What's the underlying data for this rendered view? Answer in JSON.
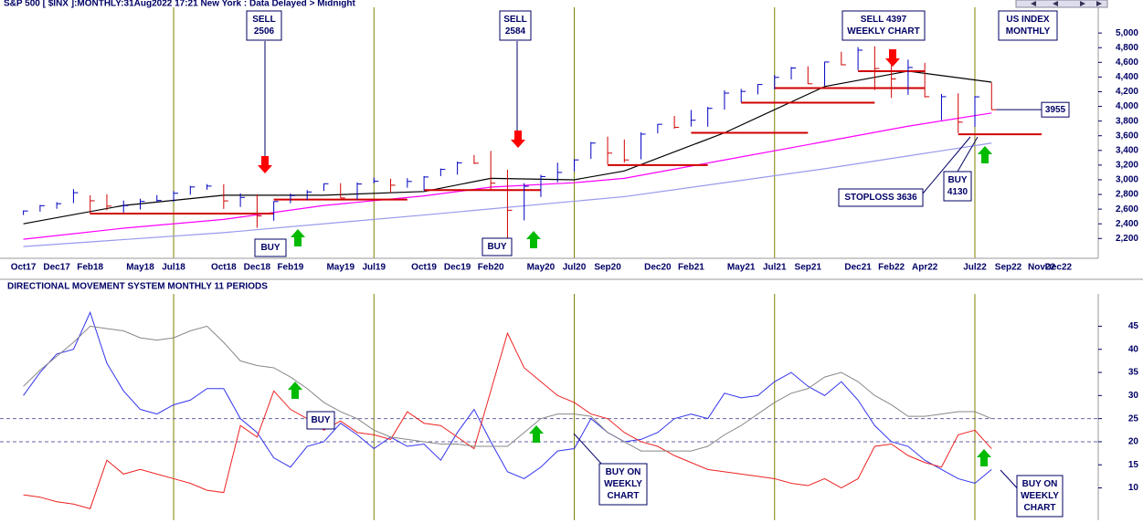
{
  "chart_data": [
    {
      "type": "ohlc",
      "title": "S&P 500 [ $INX ]:MONTHLY:31Aug2022 17:21 New York : Data Delayed > Midnight",
      "categories": [
        "Oct17",
        null,
        "Dec17",
        null,
        "Feb18",
        null,
        null,
        "May18",
        null,
        "Jul18",
        null,
        null,
        "Oct18",
        null,
        "Dec18",
        null,
        "Feb19",
        null,
        null,
        "May19",
        null,
        "Jul19",
        null,
        null,
        "Oct19",
        null,
        "Dec19",
        null,
        "Feb20",
        null,
        null,
        "May20",
        null,
        "Jul20",
        null,
        "Sep20",
        null,
        null,
        "Dec20",
        null,
        "Feb21",
        null,
        null,
        "May21",
        null,
        "Jul21",
        null,
        "Sep21",
        null,
        null,
        "Dec21",
        null,
        "Feb22",
        null,
        "Apr22",
        null,
        null,
        "Jul22",
        null,
        "Sep22",
        null,
        "Nov22",
        "Dec22"
      ],
      "high": [
        2582,
        2657,
        2695,
        2873,
        2789,
        2801,
        2718,
        2742,
        2791,
        2848,
        2917,
        2941,
        2940,
        2815,
        2800,
        2708,
        2813,
        2860,
        2949,
        2954,
        2964,
        3028,
        3014,
        3022,
        3050,
        3154,
        3248,
        3338,
        3393,
        3137,
        2954,
        3068,
        3233,
        3280,
        3515,
        3588,
        3549,
        3646,
        3760,
        3870,
        3950,
        3994,
        4218,
        4238,
        4302,
        4429,
        4537,
        4546,
        4608,
        4744,
        4808,
        4818,
        4595,
        4637,
        4593,
        4170,
        4178,
        4140,
        4325,
        null,
        null,
        null,
        null
      ],
      "low": [
        2520,
        2566,
        2605,
        2683,
        2533,
        2585,
        2553,
        2595,
        2698,
        2699,
        2796,
        2864,
        2603,
        2631,
        2346,
        2443,
        2681,
        2722,
        2848,
        2750,
        2729,
        2952,
        2822,
        2892,
        2855,
        3050,
        3070,
        3214,
        2855,
        2192,
        2447,
        2766,
        2966,
        3115,
        3284,
        3209,
        3233,
        3279,
        3633,
        3695,
        3725,
        3723,
        3955,
        4056,
        4164,
        4233,
        4367,
        4305,
        4279,
        4560,
        4495,
        4223,
        4115,
        4157,
        4124,
        3811,
        3637,
        3721,
        3955,
        null,
        null,
        null,
        null
      ],
      "close": [
        2575,
        2647,
        2674,
        2824,
        2714,
        2641,
        2648,
        2705,
        2718,
        2816,
        2902,
        2914,
        2712,
        2760,
        2507,
        2704,
        2784,
        2834,
        2946,
        2752,
        2942,
        2980,
        2926,
        2977,
        3038,
        3141,
        3231,
        3226,
        2954,
        2585,
        2912,
        3044,
        3100,
        3271,
        3500,
        3363,
        3270,
        3622,
        3756,
        3714,
        3811,
        3973,
        4181,
        4204,
        4298,
        4395,
        4523,
        4308,
        4605,
        4567,
        4766,
        4516,
        4374,
        4530,
        4132,
        4132,
        3785,
        4130,
        3955,
        null,
        null,
        null,
        null
      ],
      "up_color": "#0000c0",
      "down_color": "#d00000",
      "overlays": [
        {
          "color": "#000000",
          "x": [
            0,
            6,
            12,
            18,
            24,
            28,
            33,
            36,
            42,
            48,
            53,
            58
          ],
          "values": [
            2400,
            2650,
            2790,
            2790,
            2840,
            3020,
            3000,
            3120,
            3640,
            4270,
            4480,
            4330
          ]
        },
        {
          "color": "#ff00ff",
          "x": [
            0,
            6,
            12,
            18,
            24,
            28,
            33,
            36,
            42,
            48,
            53,
            58
          ],
          "values": [
            2190,
            2340,
            2460,
            2650,
            2780,
            2900,
            2960,
            3020,
            3270,
            3520,
            3730,
            3910
          ]
        },
        {
          "color": "#9999ee",
          "x": [
            0,
            12,
            24,
            36,
            48,
            58
          ],
          "values": [
            2090,
            2280,
            2520,
            2770,
            3150,
            3500
          ]
        }
      ],
      "levels": [
        {
          "x": [
            4,
            15
          ],
          "value": 2540
        },
        {
          "x": [
            15,
            23
          ],
          "value": 2730
        },
        {
          "x": [
            24,
            31
          ],
          "value": 2860
        },
        {
          "x": [
            35,
            41
          ],
          "value": 3200
        },
        {
          "x": [
            40,
            47
          ],
          "value": 3640
        },
        {
          "x": [
            43,
            51
          ],
          "value": 4050
        },
        {
          "x": [
            45,
            54
          ],
          "value": 4250
        },
        {
          "x": [
            50,
            54
          ],
          "value": 4480
        },
        {
          "x": [
            56,
            61
          ],
          "value": 3620
        }
      ],
      "level_color": "#d00000",
      "ylim": [
        1930,
        5350
      ],
      "yticks": [
        {
          "value": 2200,
          "label": "2,200"
        },
        {
          "value": 2400,
          "label": "2,400"
        },
        {
          "value": 2600,
          "label": "2,600"
        },
        {
          "value": 2800,
          "label": "2,800"
        },
        {
          "value": 3000,
          "label": "3,000"
        },
        {
          "value": 3200,
          "label": "3,200"
        },
        {
          "value": 3400,
          "label": "3,400"
        },
        {
          "value": 3600,
          "label": "3,600"
        },
        {
          "value": 3800,
          "label": "3,800"
        },
        {
          "value": 4000,
          "label": "4,000"
        },
        {
          "value": 4200,
          "label": "4,200"
        },
        {
          "value": 4400,
          "label": "4,400"
        },
        {
          "value": 4600,
          "label": "4,600"
        },
        {
          "value": 4800,
          "label": "4,800"
        },
        {
          "value": 5000,
          "label": "5,000"
        }
      ],
      "annotations": [
        {
          "lines": [
            "SELL",
            "2506"
          ]
        },
        {
          "lines": [
            "SELL",
            "2584"
          ]
        },
        {
          "lines": [
            "SELL 4397",
            "WEEKLY CHART"
          ]
        },
        {
          "lines": [
            "US INDEX",
            "MONTHLY"
          ]
        },
        {
          "lines": [
            "BUY"
          ]
        },
        {
          "lines": [
            "BUY"
          ]
        },
        {
          "lines": [
            "BUY",
            "4130"
          ]
        },
        {
          "lines": [
            "STOPLOSS 3636"
          ]
        }
      ]
    },
    {
      "type": "line",
      "title": "DIRECTIONAL MOVEMENT SYSTEM MONTHLY 11 PERIODS",
      "series": [
        {
          "color": "#3333ee",
          "values": [
            30,
            35,
            39,
            40,
            48,
            37,
            31,
            27,
            26,
            28,
            29,
            31.5,
            31.5,
            25,
            22,
            16.5,
            14.5,
            19,
            20,
            24,
            21.5,
            18.5,
            21,
            19,
            19.5,
            16,
            22,
            27,
            20,
            13.5,
            12,
            14.5,
            18,
            18.5,
            25,
            22,
            20,
            20.5,
            22,
            25,
            26,
            25,
            30.5,
            29.5,
            30,
            33,
            35,
            32,
            30,
            33,
            29,
            23.5,
            20,
            19,
            16,
            14,
            12,
            11,
            14
          ]
        },
        {
          "color": "#ee2222",
          "values": [
            8.5,
            8,
            7,
            6.5,
            5.5,
            16,
            13,
            14,
            13,
            12,
            11,
            9.5,
            9,
            23.5,
            21,
            31,
            27,
            25,
            22.5,
            24.5,
            22,
            21.5,
            20.5,
            26.5,
            24,
            23.5,
            21,
            18.5,
            31,
            43.5,
            36,
            33,
            30,
            28.5,
            26,
            25,
            22,
            20,
            19,
            17,
            15.5,
            14,
            13.5,
            13,
            12.5,
            12,
            11,
            10.5,
            12,
            10,
            12,
            19,
            19.5,
            17,
            15.5,
            14.5,
            21.5,
            22.5,
            18.5
          ]
        },
        {
          "color": "#888888",
          "values": [
            32,
            35.5,
            38.5,
            41.5,
            45,
            44.5,
            44,
            42.5,
            42,
            42.5,
            44,
            45,
            41.5,
            37.5,
            36.5,
            36,
            34,
            31.5,
            28.5,
            26.5,
            25,
            22.5,
            21,
            20.5,
            20,
            19.5,
            19.5,
            19,
            19,
            19,
            22,
            25,
            26,
            26,
            25.5,
            22,
            20,
            18,
            18,
            18,
            18,
            19,
            21.5,
            23.5,
            26,
            28.5,
            30.5,
            31.5,
            34,
            35,
            33,
            30,
            28,
            25.5,
            25.5,
            26,
            26.5,
            26.5,
            25
          ]
        }
      ],
      "ylim": [
        3,
        52
      ],
      "yticks": [
        10,
        15,
        20,
        25,
        30,
        35,
        40,
        45
      ],
      "hlines": [
        25,
        20
      ],
      "annotations": [
        {
          "lines": [
            "BUY"
          ]
        },
        {
          "lines": [
            "BUY ON",
            "WEEKLY",
            "CHART"
          ]
        },
        {
          "lines": [
            "BUY ON",
            "WEEKLY",
            "CHART"
          ]
        }
      ]
    }
  ]
}
